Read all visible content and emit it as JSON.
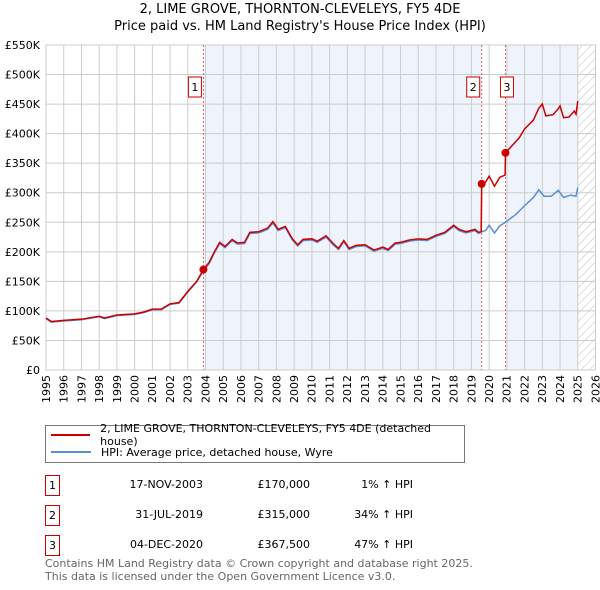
{
  "title": "2, LIME GROVE, THORNTON-CLEVELEYS, FY5 4DE",
  "subtitle": "Price paid vs. HM Land Registry's House Price Index (HPI)",
  "colors": {
    "property": "#cc0000",
    "hpi": "#5b8fd4",
    "shade": "#eef3fc"
  },
  "chart_data": {
    "type": "line",
    "title": "2, LIME GROVE, THORNTON-CLEVELEYS, FY5 4DE",
    "xlim": [
      1995,
      2026
    ],
    "ylim": [
      0,
      550000
    ],
    "x_ticks": [
      "1995",
      "1996",
      "1997",
      "1998",
      "1999",
      "2000",
      "2001",
      "2002",
      "2003",
      "2004",
      "2005",
      "2006",
      "2007",
      "2008",
      "2009",
      "2010",
      "2011",
      "2012",
      "2013",
      "2014",
      "2015",
      "2016",
      "2017",
      "2018",
      "2019",
      "2020",
      "2021",
      "2022",
      "2023",
      "2024",
      "2025",
      "2026"
    ],
    "y_ticks": [
      {
        "v": 0,
        "l": "£0"
      },
      {
        "v": 50000,
        "l": "£50K"
      },
      {
        "v": 100000,
        "l": "£100K"
      },
      {
        "v": 150000,
        "l": "£150K"
      },
      {
        "v": 200000,
        "l": "£200K"
      },
      {
        "v": 250000,
        "l": "£250K"
      },
      {
        "v": 300000,
        "l": "£300K"
      },
      {
        "v": 350000,
        "l": "£350K"
      },
      {
        "v": 400000,
        "l": "£400K"
      },
      {
        "v": 450000,
        "l": "£450K"
      },
      {
        "v": 500000,
        "l": "£500K"
      },
      {
        "v": 550000,
        "l": "£550K"
      }
    ],
    "series": [
      {
        "name": "2, LIME GROVE, THORNTON-CLEVELEYS, FY5 4DE (detached house)",
        "unit": "£K",
        "points": [
          [
            1995,
            88
          ],
          [
            1995.3,
            82
          ],
          [
            1996,
            84
          ],
          [
            1997,
            86
          ],
          [
            1998,
            91
          ],
          [
            1998.3,
            88
          ],
          [
            1999,
            93
          ],
          [
            2000,
            95
          ],
          [
            2000.5,
            98
          ],
          [
            2001,
            103
          ],
          [
            2001.5,
            103
          ],
          [
            2002,
            112
          ],
          [
            2002.5,
            114
          ],
          [
            2003,
            133
          ],
          [
            2003.5,
            150
          ],
          [
            2003.88,
            170
          ],
          [
            2004.2,
            182
          ],
          [
            2004.5,
            200
          ],
          [
            2004.8,
            216
          ],
          [
            2005.1,
            209
          ],
          [
            2005.5,
            221
          ],
          [
            2005.8,
            215
          ],
          [
            2006.2,
            216
          ],
          [
            2006.5,
            233
          ],
          [
            2007,
            234
          ],
          [
            2007.5,
            240
          ],
          [
            2007.8,
            251
          ],
          [
            2008.1,
            238
          ],
          [
            2008.5,
            243
          ],
          [
            2008.9,
            222
          ],
          [
            2009.2,
            212
          ],
          [
            2009.5,
            221
          ],
          [
            2010,
            222
          ],
          [
            2010.3,
            218
          ],
          [
            2010.8,
            227
          ],
          [
            2011.2,
            214
          ],
          [
            2011.5,
            206
          ],
          [
            2011.8,
            219
          ],
          [
            2012.1,
            206
          ],
          [
            2012.5,
            211
          ],
          [
            2013,
            212
          ],
          [
            2013.5,
            203
          ],
          [
            2014,
            208
          ],
          [
            2014.3,
            204
          ],
          [
            2014.7,
            215
          ],
          [
            2015,
            216
          ],
          [
            2015.5,
            220
          ],
          [
            2016,
            222
          ],
          [
            2016.5,
            221
          ],
          [
            2017,
            228
          ],
          [
            2017.5,
            233
          ],
          [
            2018,
            245
          ],
          [
            2018.3,
            238
          ],
          [
            2018.7,
            234
          ],
          [
            2019.2,
            238
          ],
          [
            2019.4,
            233
          ],
          [
            2019.55,
            234
          ],
          [
            2019.58,
            315
          ],
          [
            2019.8,
            318
          ],
          [
            2020,
            328
          ],
          [
            2020.3,
            311
          ],
          [
            2020.6,
            326
          ],
          [
            2020.9,
            330
          ],
          [
            2020.92,
            367.5
          ],
          [
            2021.3,
            380
          ],
          [
            2021.7,
            393
          ],
          [
            2022,
            408
          ],
          [
            2022.5,
            423
          ],
          [
            2022.8,
            443
          ],
          [
            2023,
            450
          ],
          [
            2023.2,
            430
          ],
          [
            2023.6,
            432
          ],
          [
            2023.9,
            442
          ],
          [
            2024,
            447
          ],
          [
            2024.2,
            427
          ],
          [
            2024.5,
            428
          ],
          [
            2024.8,
            438
          ],
          [
            2024.9,
            433
          ],
          [
            2025,
            455
          ]
        ]
      },
      {
        "name": "HPI: Average price, detached house, Wyre",
        "unit": "£K",
        "points": [
          [
            1995,
            87
          ],
          [
            1995.3,
            81
          ],
          [
            1996,
            83
          ],
          [
            1997,
            85
          ],
          [
            1998,
            90
          ],
          [
            1998.3,
            87
          ],
          [
            1999,
            92
          ],
          [
            2000,
            94
          ],
          [
            2000.5,
            97
          ],
          [
            2001,
            102
          ],
          [
            2001.5,
            102
          ],
          [
            2002,
            111
          ],
          [
            2002.5,
            113
          ],
          [
            2003,
            132
          ],
          [
            2003.5,
            149
          ],
          [
            2003.88,
            168
          ],
          [
            2004.2,
            180
          ],
          [
            2004.5,
            198
          ],
          [
            2004.8,
            214
          ],
          [
            2005.1,
            207
          ],
          [
            2005.5,
            219
          ],
          [
            2005.8,
            213
          ],
          [
            2006.2,
            214
          ],
          [
            2006.5,
            231
          ],
          [
            2007,
            232
          ],
          [
            2007.5,
            238
          ],
          [
            2007.8,
            249
          ],
          [
            2008.1,
            236
          ],
          [
            2008.5,
            241
          ],
          [
            2008.9,
            220
          ],
          [
            2009.2,
            210
          ],
          [
            2009.5,
            219
          ],
          [
            2010,
            220
          ],
          [
            2010.3,
            216
          ],
          [
            2010.8,
            225
          ],
          [
            2011.2,
            212
          ],
          [
            2011.5,
            204
          ],
          [
            2011.8,
            217
          ],
          [
            2012.1,
            204
          ],
          [
            2012.5,
            209
          ],
          [
            2013,
            210
          ],
          [
            2013.5,
            201
          ],
          [
            2014,
            206
          ],
          [
            2014.3,
            202
          ],
          [
            2014.7,
            213
          ],
          [
            2015,
            214
          ],
          [
            2015.5,
            218
          ],
          [
            2016,
            220
          ],
          [
            2016.5,
            219
          ],
          [
            2017,
            226
          ],
          [
            2017.5,
            231
          ],
          [
            2018,
            243
          ],
          [
            2018.3,
            236
          ],
          [
            2018.7,
            232
          ],
          [
            2019.2,
            236
          ],
          [
            2019.4,
            231
          ],
          [
            2019.58,
            234
          ],
          [
            2019.8,
            236
          ],
          [
            2020,
            245
          ],
          [
            2020.3,
            232
          ],
          [
            2020.6,
            244
          ],
          [
            2020.92,
            250
          ],
          [
            2021.5,
            263
          ],
          [
            2022,
            278
          ],
          [
            2022.5,
            292
          ],
          [
            2022.8,
            305
          ],
          [
            2023.1,
            294
          ],
          [
            2023.5,
            294
          ],
          [
            2023.9,
            304
          ],
          [
            2024.2,
            292
          ],
          [
            2024.6,
            296
          ],
          [
            2024.9,
            294
          ],
          [
            2025,
            309
          ]
        ]
      }
    ],
    "sales": [
      {
        "label": "1",
        "x": 2003.88,
        "y": 170
      },
      {
        "label": "2",
        "x": 2019.58,
        "y": 315
      },
      {
        "label": "3",
        "x": 2020.92,
        "y": 367.5
      }
    ],
    "shaded_ranges": [
      [
        2003.88,
        2019.58
      ],
      [
        2020.92,
        2025
      ]
    ],
    "forecast_hatch_from": 2025
  },
  "legend": {
    "property": "2, LIME GROVE, THORNTON-CLEVELEYS, FY5 4DE (detached house)",
    "hpi": "HPI: Average price, detached house, Wyre"
  },
  "transactions": [
    {
      "num": "1",
      "date": "17-NOV-2003",
      "price": "£170,000",
      "hpi": "1% ↑ HPI"
    },
    {
      "num": "2",
      "date": "31-JUL-2019",
      "price": "£315,000",
      "hpi": "34% ↑ HPI"
    },
    {
      "num": "3",
      "date": "04-DEC-2020",
      "price": "£367,500",
      "hpi": "47% ↑ HPI"
    }
  ],
  "footer": {
    "line1": "Contains HM Land Registry data © Crown copyright and database right 2025.",
    "line2": "This data is licensed under the Open Government Licence v3.0."
  }
}
